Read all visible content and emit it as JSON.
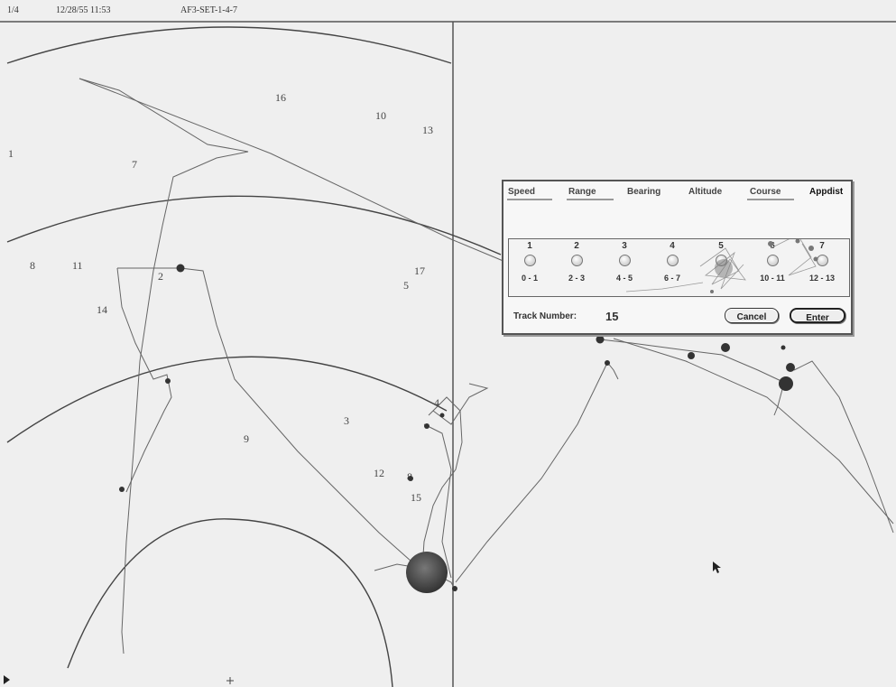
{
  "status_bar": {
    "page": "1/4",
    "date_time": "12/28/55  11:53",
    "session": "AF3-SET-1-4-7"
  },
  "track_labels": [
    "16",
    "10",
    "13",
    "1",
    "7",
    "8",
    "11",
    "14",
    "2",
    "17",
    "5",
    "3",
    "9",
    "12",
    "8",
    "15",
    "4"
  ],
  "dialog": {
    "tabs": [
      "Speed",
      "Range",
      "Bearing",
      "Altitude",
      "Course",
      "Appdist"
    ],
    "active_tab": "Appdist",
    "ranks": [
      {
        "num": "1",
        "range": "0 - 1"
      },
      {
        "num": "2",
        "range": "2 - 3"
      },
      {
        "num": "3",
        "range": "4 - 5"
      },
      {
        "num": "4",
        "range": "6 - 7"
      },
      {
        "num": "5",
        "range": ""
      },
      {
        "num": "6",
        "range": "10 - 11"
      },
      {
        "num": "7",
        "range": "12 - 13"
      }
    ],
    "track_number_label": "Track Number:",
    "track_number_value": "15",
    "cancel_label": "Cancel",
    "enter_label": "Enter"
  }
}
